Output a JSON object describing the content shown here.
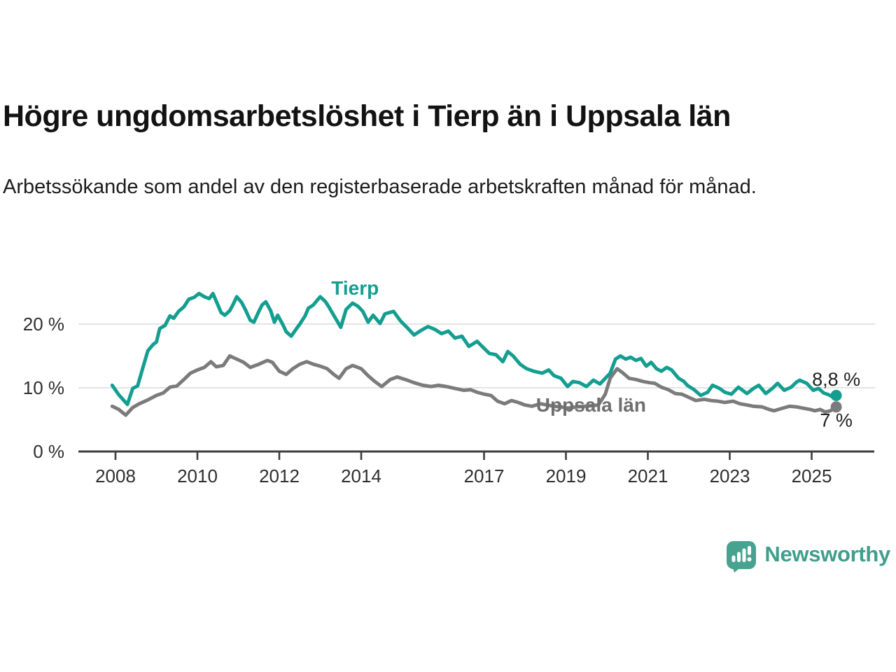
{
  "header": {
    "title": "Högre ungdomsarbetslöshet i Tierp än i Uppsala län",
    "subtitle": "Arbetssökande som andel av den registerbaserade arbetskraften månad för månad."
  },
  "chart_data": {
    "type": "line",
    "title": "Högre ungdomsarbetslöshet i Tierp än i Uppsala län",
    "xlabel": "",
    "ylabel": "",
    "x_range_years": [
      2007.1,
      2026.5
    ],
    "ylim": [
      0,
      26
    ],
    "grid": "horizontal",
    "legend_position": "inline-labels",
    "x_ticks": [
      2008,
      2010,
      2012,
      2014,
      2017,
      2019,
      2021,
      2023,
      2025
    ],
    "y_ticks": [
      {
        "value": 0,
        "label": "0 %"
      },
      {
        "value": 10,
        "label": "10 %"
      },
      {
        "value": 20,
        "label": "20 %"
      }
    ],
    "gridline_values": [
      10,
      20
    ],
    "colors": {
      "tierp": "#149e90",
      "uppsala": "#7b7b7b",
      "axis": "#3d3d3d",
      "gridline": "#dcdcdc",
      "tick_label": "#2e2e2e",
      "value_label": "#1f1f1f",
      "uppsala_label": "#6f6f6f"
    },
    "series": [
      {
        "name": "Tierp",
        "color": "#149e90",
        "value_label": {
          "text": "8,8 %",
          "dy": -14
        },
        "end_value": 8.8,
        "points": [
          [
            2007.92,
            10.4
          ],
          [
            2008.08,
            8.9
          ],
          [
            2008.29,
            7.4
          ],
          [
            2008.42,
            9.9
          ],
          [
            2008.54,
            10.3
          ],
          [
            2008.67,
            13.2
          ],
          [
            2008.79,
            15.8
          ],
          [
            2008.92,
            16.8
          ],
          [
            2009.0,
            17.2
          ],
          [
            2009.08,
            19.3
          ],
          [
            2009.21,
            19.8
          ],
          [
            2009.33,
            21.3
          ],
          [
            2009.42,
            20.9
          ],
          [
            2009.54,
            22.0
          ],
          [
            2009.67,
            22.7
          ],
          [
            2009.79,
            23.9
          ],
          [
            2009.92,
            24.2
          ],
          [
            2010.04,
            24.8
          ],
          [
            2010.17,
            24.3
          ],
          [
            2010.29,
            24.0
          ],
          [
            2010.38,
            24.8
          ],
          [
            2010.5,
            23.0
          ],
          [
            2010.58,
            21.8
          ],
          [
            2010.67,
            21.4
          ],
          [
            2010.79,
            22.1
          ],
          [
            2010.88,
            23.2
          ],
          [
            2010.96,
            24.3
          ],
          [
            2011.08,
            23.4
          ],
          [
            2011.17,
            22.3
          ],
          [
            2011.29,
            20.6
          ],
          [
            2011.38,
            20.3
          ],
          [
            2011.5,
            22.0
          ],
          [
            2011.58,
            23.0
          ],
          [
            2011.67,
            23.5
          ],
          [
            2011.79,
            22.1
          ],
          [
            2011.88,
            20.3
          ],
          [
            2011.96,
            21.4
          ],
          [
            2012.08,
            20.0
          ],
          [
            2012.17,
            18.8
          ],
          [
            2012.29,
            18.1
          ],
          [
            2012.42,
            19.3
          ],
          [
            2012.5,
            20.0
          ],
          [
            2012.63,
            21.3
          ],
          [
            2012.71,
            22.5
          ],
          [
            2012.83,
            23.0
          ],
          [
            2012.92,
            23.7
          ],
          [
            2013.0,
            24.3
          ],
          [
            2013.13,
            23.5
          ],
          [
            2013.21,
            22.7
          ],
          [
            2013.29,
            21.8
          ],
          [
            2013.42,
            20.4
          ],
          [
            2013.5,
            19.5
          ],
          [
            2013.63,
            22.3
          ],
          [
            2013.79,
            23.3
          ],
          [
            2013.92,
            22.8
          ],
          [
            2014.04,
            22.0
          ],
          [
            2014.17,
            20.3
          ],
          [
            2014.29,
            21.4
          ],
          [
            2014.46,
            20.1
          ],
          [
            2014.58,
            21.6
          ],
          [
            2014.79,
            22.0
          ],
          [
            2014.96,
            20.5
          ],
          [
            2015.13,
            19.4
          ],
          [
            2015.29,
            18.3
          ],
          [
            2015.46,
            19.0
          ],
          [
            2015.63,
            19.6
          ],
          [
            2015.79,
            19.2
          ],
          [
            2015.96,
            18.5
          ],
          [
            2016.13,
            18.9
          ],
          [
            2016.29,
            17.8
          ],
          [
            2016.46,
            18.1
          ],
          [
            2016.63,
            16.5
          ],
          [
            2016.83,
            17.3
          ],
          [
            2017.0,
            16.2
          ],
          [
            2017.13,
            15.4
          ],
          [
            2017.29,
            15.2
          ],
          [
            2017.46,
            14.1
          ],
          [
            2017.58,
            15.7
          ],
          [
            2017.71,
            15.0
          ],
          [
            2017.88,
            13.7
          ],
          [
            2018.04,
            13.0
          ],
          [
            2018.21,
            12.6
          ],
          [
            2018.42,
            12.3
          ],
          [
            2018.58,
            12.8
          ],
          [
            2018.71,
            11.9
          ],
          [
            2018.88,
            11.5
          ],
          [
            2019.04,
            10.2
          ],
          [
            2019.17,
            11.0
          ],
          [
            2019.33,
            10.8
          ],
          [
            2019.5,
            10.2
          ],
          [
            2019.67,
            11.2
          ],
          [
            2019.83,
            10.6
          ],
          [
            2019.96,
            11.5
          ],
          [
            2020.08,
            12.3
          ],
          [
            2020.21,
            14.5
          ],
          [
            2020.33,
            15.0
          ],
          [
            2020.46,
            14.5
          ],
          [
            2020.58,
            14.8
          ],
          [
            2020.71,
            14.3
          ],
          [
            2020.83,
            14.6
          ],
          [
            2020.96,
            13.4
          ],
          [
            2021.08,
            14.0
          ],
          [
            2021.21,
            13.0
          ],
          [
            2021.33,
            12.6
          ],
          [
            2021.46,
            13.2
          ],
          [
            2021.58,
            12.8
          ],
          [
            2021.75,
            11.5
          ],
          [
            2021.88,
            11.0
          ],
          [
            2021.96,
            10.4
          ],
          [
            2022.13,
            9.7
          ],
          [
            2022.29,
            8.8
          ],
          [
            2022.46,
            9.3
          ],
          [
            2022.58,
            10.4
          ],
          [
            2022.75,
            9.9
          ],
          [
            2022.88,
            9.3
          ],
          [
            2023.04,
            9.0
          ],
          [
            2023.21,
            10.1
          ],
          [
            2023.42,
            9.1
          ],
          [
            2023.58,
            9.9
          ],
          [
            2023.71,
            10.4
          ],
          [
            2023.88,
            9.1
          ],
          [
            2024.04,
            9.9
          ],
          [
            2024.17,
            10.7
          ],
          [
            2024.33,
            9.6
          ],
          [
            2024.5,
            10.1
          ],
          [
            2024.63,
            10.9
          ],
          [
            2024.71,
            11.2
          ],
          [
            2024.88,
            10.7
          ],
          [
            2025.04,
            9.6
          ],
          [
            2025.17,
            9.9
          ],
          [
            2025.29,
            9.2
          ],
          [
            2025.42,
            8.9
          ],
          [
            2025.5,
            8.6
          ],
          [
            2025.6,
            8.8
          ]
        ]
      },
      {
        "name": "Uppsala län",
        "color": "#7b7b7b",
        "value_label": {
          "text": "7 %",
          "dy": 28
        },
        "end_value": 7.0,
        "points": [
          [
            2007.92,
            7.1
          ],
          [
            2008.08,
            6.6
          ],
          [
            2008.25,
            5.7
          ],
          [
            2008.42,
            6.9
          ],
          [
            2008.58,
            7.5
          ],
          [
            2008.79,
            8.1
          ],
          [
            2009.0,
            8.8
          ],
          [
            2009.17,
            9.2
          ],
          [
            2009.33,
            10.1
          ],
          [
            2009.5,
            10.3
          ],
          [
            2009.67,
            11.3
          ],
          [
            2009.83,
            12.3
          ],
          [
            2010.0,
            12.8
          ],
          [
            2010.17,
            13.2
          ],
          [
            2010.33,
            14.1
          ],
          [
            2010.46,
            13.3
          ],
          [
            2010.63,
            13.5
          ],
          [
            2010.79,
            15.0
          ],
          [
            2010.96,
            14.5
          ],
          [
            2011.13,
            14.0
          ],
          [
            2011.29,
            13.2
          ],
          [
            2011.5,
            13.7
          ],
          [
            2011.71,
            14.3
          ],
          [
            2011.83,
            14.0
          ],
          [
            2012.0,
            12.6
          ],
          [
            2012.17,
            12.1
          ],
          [
            2012.33,
            13.0
          ],
          [
            2012.5,
            13.7
          ],
          [
            2012.67,
            14.1
          ],
          [
            2012.83,
            13.7
          ],
          [
            2013.0,
            13.4
          ],
          [
            2013.17,
            13.0
          ],
          [
            2013.33,
            12.1
          ],
          [
            2013.46,
            11.5
          ],
          [
            2013.63,
            13.0
          ],
          [
            2013.79,
            13.5
          ],
          [
            2014.0,
            13.0
          ],
          [
            2014.17,
            11.9
          ],
          [
            2014.33,
            11.0
          ],
          [
            2014.5,
            10.2
          ],
          [
            2014.71,
            11.3
          ],
          [
            2014.88,
            11.7
          ],
          [
            2015.08,
            11.3
          ],
          [
            2015.29,
            10.8
          ],
          [
            2015.5,
            10.4
          ],
          [
            2015.71,
            10.2
          ],
          [
            2015.88,
            10.4
          ],
          [
            2016.08,
            10.2
          ],
          [
            2016.29,
            9.9
          ],
          [
            2016.5,
            9.6
          ],
          [
            2016.67,
            9.7
          ],
          [
            2016.83,
            9.3
          ],
          [
            2017.0,
            9.0
          ],
          [
            2017.17,
            8.8
          ],
          [
            2017.33,
            7.9
          ],
          [
            2017.5,
            7.5
          ],
          [
            2017.67,
            8.0
          ],
          [
            2017.83,
            7.7
          ],
          [
            2018.0,
            7.3
          ],
          [
            2018.17,
            7.1
          ],
          [
            2018.38,
            7.5
          ],
          [
            2018.54,
            7.3
          ],
          [
            2018.71,
            7.1
          ],
          [
            2018.88,
            7.0
          ],
          [
            2019.04,
            6.8
          ],
          [
            2019.25,
            7.0
          ],
          [
            2019.46,
            7.1
          ],
          [
            2019.63,
            7.2
          ],
          [
            2019.79,
            7.3
          ],
          [
            2019.96,
            9.0
          ],
          [
            2020.08,
            11.5
          ],
          [
            2020.25,
            13.0
          ],
          [
            2020.38,
            12.4
          ],
          [
            2020.54,
            11.5
          ],
          [
            2020.71,
            11.3
          ],
          [
            2020.88,
            11.0
          ],
          [
            2021.04,
            10.8
          ],
          [
            2021.17,
            10.7
          ],
          [
            2021.33,
            10.1
          ],
          [
            2021.5,
            9.7
          ],
          [
            2021.67,
            9.1
          ],
          [
            2021.83,
            9.0
          ],
          [
            2022.0,
            8.5
          ],
          [
            2022.17,
            8.0
          ],
          [
            2022.38,
            8.2
          ],
          [
            2022.54,
            8.0
          ],
          [
            2022.71,
            7.9
          ],
          [
            2022.88,
            7.7
          ],
          [
            2023.08,
            7.9
          ],
          [
            2023.25,
            7.5
          ],
          [
            2023.42,
            7.3
          ],
          [
            2023.58,
            7.1
          ],
          [
            2023.79,
            7.0
          ],
          [
            2023.96,
            6.6
          ],
          [
            2024.08,
            6.4
          ],
          [
            2024.29,
            6.8
          ],
          [
            2024.46,
            7.1
          ],
          [
            2024.63,
            7.0
          ],
          [
            2024.79,
            6.8
          ],
          [
            2024.96,
            6.6
          ],
          [
            2025.08,
            6.4
          ],
          [
            2025.21,
            6.6
          ],
          [
            2025.33,
            6.2
          ],
          [
            2025.46,
            6.4
          ],
          [
            2025.6,
            7.0
          ]
        ]
      }
    ],
    "series_labels": [
      {
        "text": "Tierp",
        "year": 2013.27,
        "value": 24.6,
        "color": "#149e90",
        "anchor": "start"
      },
      {
        "text": "Uppsala län",
        "year": 2018.27,
        "value": 6.25,
        "color": "#6f6f6f",
        "anchor": "start"
      }
    ]
  },
  "footer": {
    "brand": "Newsworthy",
    "brand_color": "#3f9f8c",
    "icon_color": "#47a38f"
  }
}
